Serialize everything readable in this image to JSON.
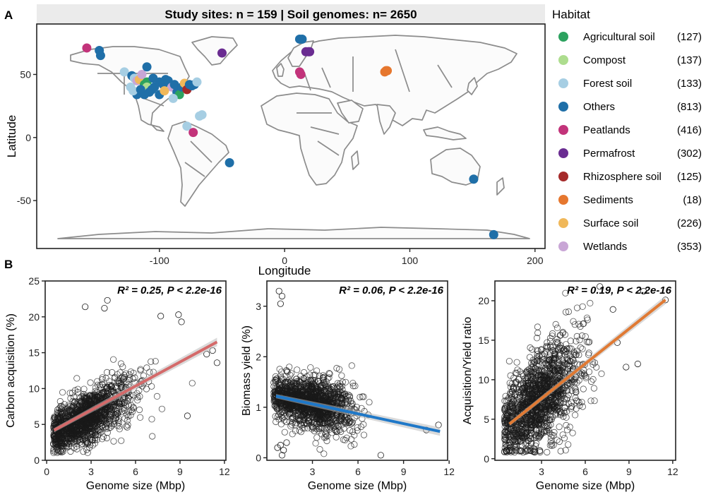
{
  "panel_labels": {
    "a": "A",
    "b": "B"
  },
  "map": {
    "banner": "Study sites: n = 159 |  Soil genomes: n= 2650",
    "xlabel": "Longitude",
    "ylabel": "Latitude",
    "xticks": [
      "-100",
      "0",
      "100",
      "200"
    ],
    "yticks": [
      "50",
      "0",
      "-50"
    ]
  },
  "legend": {
    "title": "Habitat",
    "items": [
      {
        "label": "Agricultural soil",
        "count": "(127)",
        "color": "#2ca25f"
      },
      {
        "label": "Compost",
        "count": "(137)",
        "color": "#addd8e"
      },
      {
        "label": "Forest soil",
        "count": "(133)",
        "color": "#a6cee3"
      },
      {
        "label": "Others",
        "count": "(813)",
        "color": "#1f6fa8"
      },
      {
        "label": "Peatlands",
        "count": "(416)",
        "color": "#c2337a"
      },
      {
        "label": "Permafrost",
        "count": "(302)",
        "color": "#6a2c91"
      },
      {
        "label": "Rhizosphere soil",
        "count": "(125)",
        "color": "#a52a2a"
      },
      {
        "label": "Sediments",
        "count": "(18)",
        "color": "#e6772e"
      },
      {
        "label": "Surface soil",
        "count": "(226)",
        "color": "#f0b85a"
      },
      {
        "label": "Wetlands",
        "count": "(353)",
        "color": "#c9a6d6"
      }
    ]
  },
  "chart_data": [
    {
      "type": "scatter",
      "panel": "map",
      "xlim": [
        -198,
        208
      ],
      "ylim": [
        -88,
        90
      ],
      "points": [
        {
          "lon": -158,
          "lat": 71,
          "habitat": "Peatlands"
        },
        {
          "lon": -148,
          "lat": 69,
          "habitat": "Others"
        },
        {
          "lon": -147,
          "lat": 65,
          "habitat": "Others"
        },
        {
          "lon": -50,
          "lat": 67,
          "habitat": "Permafrost"
        },
        {
          "lon": 12,
          "lat": 78,
          "habitat": "Others"
        },
        {
          "lon": 14,
          "lat": 78,
          "habitat": "Others"
        },
        {
          "lon": 17,
          "lat": 68,
          "habitat": "Permafrost"
        },
        {
          "lon": 19,
          "lat": 68,
          "habitat": "Permafrost"
        },
        {
          "lon": 20,
          "lat": 68,
          "habitat": "Permafrost"
        },
        {
          "lon": 12,
          "lat": 52,
          "habitat": "Peatlands"
        },
        {
          "lon": 13,
          "lat": 50,
          "habitat": "Peatlands"
        },
        {
          "lon": 80,
          "lat": 52,
          "habitat": "Sediments"
        },
        {
          "lon": 81,
          "lat": 53,
          "habitat": "Sediments"
        },
        {
          "lon": 82,
          "lat": 53,
          "habitat": "Sediments"
        },
        {
          "lon": -128,
          "lat": 52,
          "habitat": "Forest soil"
        },
        {
          "lon": -122,
          "lat": 49,
          "habitat": "Others"
        },
        {
          "lon": -120,
          "lat": 47,
          "habitat": "Forest soil"
        },
        {
          "lon": -118,
          "lat": 45,
          "habitat": "Wetlands"
        },
        {
          "lon": -116,
          "lat": 46,
          "habitat": "Surface soil"
        },
        {
          "lon": -114,
          "lat": 50,
          "habitat": "Wetlands"
        },
        {
          "lon": -112,
          "lat": 42,
          "habitat": "Agricultural soil"
        },
        {
          "lon": -110,
          "lat": 44,
          "habitat": "Agricultural soil"
        },
        {
          "lon": -110,
          "lat": 40,
          "habitat": "Compost"
        },
        {
          "lon": -108,
          "lat": 36,
          "habitat": "Others"
        },
        {
          "lon": -112,
          "lat": 34,
          "habitat": "Others"
        },
        {
          "lon": -118,
          "lat": 34,
          "habitat": "Others"
        },
        {
          "lon": -121,
          "lat": 37,
          "habitat": "Forest soil"
        },
        {
          "lon": -123,
          "lat": 40,
          "habitat": "Forest soil"
        },
        {
          "lon": -106,
          "lat": 38,
          "habitat": "Others"
        },
        {
          "lon": -104,
          "lat": 40,
          "habitat": "Others"
        },
        {
          "lon": -110,
          "lat": 56,
          "habitat": "Others"
        },
        {
          "lon": -100,
          "lat": 44,
          "habitat": "Others"
        },
        {
          "lon": -97,
          "lat": 42,
          "habitat": "Others"
        },
        {
          "lon": -95,
          "lat": 46,
          "habitat": "Others"
        },
        {
          "lon": -93,
          "lat": 45,
          "habitat": "Others"
        },
        {
          "lon": -90,
          "lat": 40,
          "habitat": "Wetlands"
        },
        {
          "lon": -88,
          "lat": 42,
          "habitat": "Others"
        },
        {
          "lon": -86,
          "lat": 36,
          "habitat": "Others"
        },
        {
          "lon": -84,
          "lat": 34,
          "habitat": "Agricultural soil"
        },
        {
          "lon": -82,
          "lat": 40,
          "habitat": "Others"
        },
        {
          "lon": -80,
          "lat": 43,
          "habitat": "Surface soil"
        },
        {
          "lon": -78,
          "lat": 38,
          "habitat": "Rhizosphere soil"
        },
        {
          "lon": -76,
          "lat": 42,
          "habitat": "Others"
        },
        {
          "lon": -74,
          "lat": 41,
          "habitat": "Others"
        },
        {
          "lon": -72,
          "lat": 42,
          "habitat": "Others"
        },
        {
          "lon": -70,
          "lat": 44,
          "habitat": "Forest soil"
        },
        {
          "lon": -66,
          "lat": 18,
          "habitat": "Forest soil"
        },
        {
          "lon": -68,
          "lat": 17,
          "habitat": "Forest soil"
        },
        {
          "lon": -78,
          "lat": 9,
          "habitat": "Forest soil"
        },
        {
          "lon": -73,
          "lat": 4,
          "habitat": "Peatlands"
        },
        {
          "lon": -44,
          "lat": -20,
          "habitat": "Others"
        },
        {
          "lon": 151,
          "lat": -33,
          "habitat": "Others"
        },
        {
          "lon": 167,
          "lat": -77,
          "habitat": "Others"
        },
        {
          "lon": -100,
          "lat": 34,
          "habitat": "Others"
        },
        {
          "lon": -96,
          "lat": 37,
          "habitat": "Surface soil"
        },
        {
          "lon": -89,
          "lat": 31,
          "habitat": "Forest soil"
        },
        {
          "lon": -115,
          "lat": 38,
          "habitat": "Others"
        },
        {
          "lon": -105,
          "lat": 47,
          "habitat": "Others"
        }
      ]
    },
    {
      "type": "scatter",
      "panel": "carbon-acquisition",
      "annotation": "R² = 0.25, P < 2.2e-16",
      "xlabel": "Genome size (Mbp)",
      "ylabel": "Carbon acquisition (%)",
      "xlim": [
        -0.1,
        12.1
      ],
      "ylim": [
        0,
        25
      ],
      "xticks": [
        "0",
        "3",
        "6",
        "9",
        "12"
      ],
      "yticks": [
        "0",
        "5",
        "10",
        "15",
        "20",
        "25"
      ],
      "fit": {
        "x0": 0.5,
        "y0": 4.2,
        "x1": 11.5,
        "y1": 16.5,
        "color": "#d46a6a"
      },
      "cloud": {
        "intercept": 3.2,
        "slope": 1.05,
        "x_mean": 2.7,
        "x_sd": 1.5,
        "y_noise": 2.6,
        "ymin": 1,
        "ymax": 22.5
      },
      "extra_points": [
        [
          11.5,
          13.6
        ],
        [
          11.2,
          15.3
        ],
        [
          10.8,
          14.8
        ],
        [
          9.1,
          19.3
        ],
        [
          8.9,
          20.3
        ],
        [
          7.7,
          20.1
        ],
        [
          3.9,
          21.2
        ],
        [
          2.6,
          21.4
        ],
        [
          4.1,
          22.3
        ],
        [
          9.5,
          6.2
        ]
      ]
    },
    {
      "type": "scatter",
      "panel": "biomass-yield",
      "annotation": "R² = 0.06, P < 2.2e-16",
      "xlabel": "Genome size (Mbp)",
      "ylabel": "Biomass yield (%)",
      "xlim": [
        0,
        11.9
      ],
      "ylim": [
        -0.05,
        3.5
      ],
      "xticks": [
        "3",
        "6",
        "9",
        "12"
      ],
      "yticks": [
        "0",
        "1",
        "2",
        "3"
      ],
      "fit": {
        "x0": 0.6,
        "y0": 1.22,
        "x1": 11.4,
        "y1": 0.52,
        "color": "#1f78c8"
      },
      "cloud": {
        "intercept": 1.25,
        "slope": -0.06,
        "x_mean": 2.8,
        "x_sd": 1.4,
        "y_noise": 0.35,
        "ymin": 0.05,
        "ymax": 2.5
      },
      "extra_points": [
        [
          0.8,
          3.3
        ],
        [
          1.0,
          3.2
        ],
        [
          0.9,
          3.05
        ],
        [
          0.7,
          0.2
        ],
        [
          0.9,
          0.25
        ],
        [
          1.1,
          0.15
        ],
        [
          1.3,
          0.3
        ],
        [
          1.0,
          0.05
        ],
        [
          7.5,
          0.05
        ],
        [
          11.3,
          0.65
        ],
        [
          10.5,
          0.55
        ]
      ]
    },
    {
      "type": "scatter",
      "panel": "acquisition-yield-ratio",
      "annotation": "R² = 0.19, P < 2.2e-16",
      "xlabel": "Genome size (Mbp)",
      "ylabel": "Acquisition/Yield ratio",
      "xlim": [
        -0.2,
        12.2
      ],
      "ylim": [
        -0.2,
        22.5
      ],
      "xticks": [
        "3",
        "6",
        "9",
        "12"
      ],
      "yticks": [
        "0",
        "5",
        "10",
        "15",
        "20"
      ],
      "fit": {
        "x0": 0.8,
        "y0": 4.4,
        "x1": 11.5,
        "y1": 20.1,
        "color": "#e07a34"
      },
      "cloud": {
        "intercept": 3.3,
        "slope": 1.5,
        "x_mean": 2.8,
        "x_sd": 1.5,
        "y_noise": 4.2,
        "ymin": 0.8,
        "ymax": 21.5
      },
      "extra_points": [
        [
          11.5,
          20.1
        ],
        [
          9.6,
          12.0
        ],
        [
          8.8,
          11.6
        ],
        [
          8.2,
          14.7
        ],
        [
          7.9,
          18.9
        ],
        [
          10.0,
          21.2
        ],
        [
          7.0,
          21.8
        ]
      ]
    }
  ]
}
